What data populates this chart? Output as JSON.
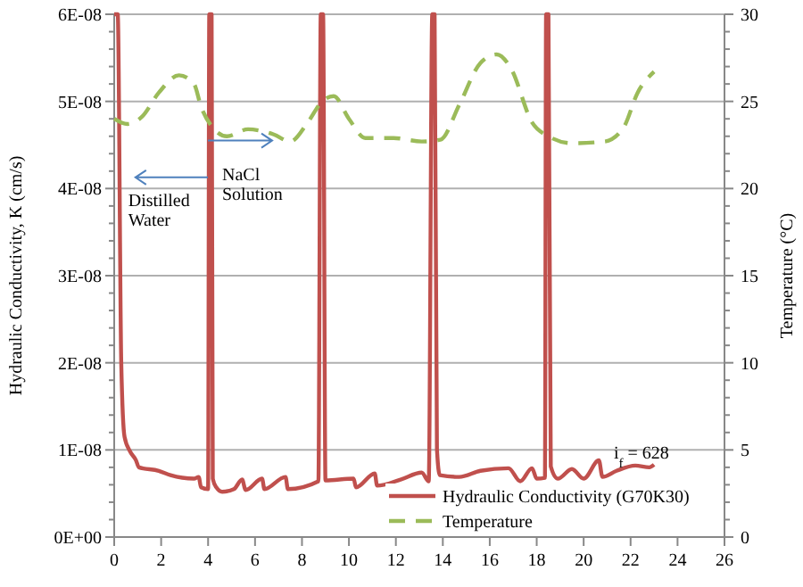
{
  "chart_data": {
    "type": "line",
    "xlabel": null,
    "ylabel": "Hydraulic Conductivity, K (cm/s)",
    "y2label": "Temperature (°C)",
    "xlim": [
      0,
      26
    ],
    "xticks": [
      0,
      2,
      4,
      6,
      8,
      10,
      12,
      14,
      16,
      18,
      20,
      22,
      24,
      26
    ],
    "ylim": [
      0,
      6e-08
    ],
    "yticks": [
      {
        "value": 0,
        "label": "0E+00"
      },
      {
        "value": 2e-09,
        "label": null
      },
      {
        "value": 4e-09,
        "label": null
      },
      {
        "value": 6e-09,
        "label": null
      },
      {
        "value": 8e-09,
        "label": null
      },
      {
        "value": 1e-08,
        "label": "1E-08"
      },
      {
        "value": 1.2e-08,
        "label": null
      },
      {
        "value": 1.4e-08,
        "label": null
      },
      {
        "value": 1.6e-08,
        "label": null
      },
      {
        "value": 1.8e-08,
        "label": null
      },
      {
        "value": 2e-08,
        "label": "2E-08"
      },
      {
        "value": 2.2e-08,
        "label": null
      },
      {
        "value": 2.4e-08,
        "label": null
      },
      {
        "value": 2.6e-08,
        "label": null
      },
      {
        "value": 2.8e-08,
        "label": null
      },
      {
        "value": 3e-08,
        "label": "3E-08"
      },
      {
        "value": 3.2e-08,
        "label": null
      },
      {
        "value": 3.4e-08,
        "label": null
      },
      {
        "value": 3.6e-08,
        "label": null
      },
      {
        "value": 3.8e-08,
        "label": null
      },
      {
        "value": 4e-08,
        "label": "4E-08"
      },
      {
        "value": 4.2e-08,
        "label": null
      },
      {
        "value": 4.4e-08,
        "label": null
      },
      {
        "value": 4.6e-08,
        "label": null
      },
      {
        "value": 4.8e-08,
        "label": null
      },
      {
        "value": 5e-08,
        "label": "5E-08"
      },
      {
        "value": 5.2e-08,
        "label": null
      },
      {
        "value": 5.4e-08,
        "label": null
      },
      {
        "value": 5.6e-08,
        "label": null
      },
      {
        "value": 5.8e-08,
        "label": null
      },
      {
        "value": 6e-08,
        "label": "6E-08"
      }
    ],
    "y2lim": [
      0,
      30
    ],
    "y2ticks": [
      0,
      {
        "value": 1,
        "label": null
      },
      {
        "value": 2,
        "label": null
      },
      {
        "value": 3,
        "label": null
      },
      {
        "value": 4,
        "label": null
      },
      5,
      {
        "value": 6,
        "label": null
      },
      {
        "value": 7,
        "label": null
      },
      {
        "value": 8,
        "label": null
      },
      {
        "value": 9,
        "label": null
      },
      10,
      {
        "value": 11,
        "label": null
      },
      {
        "value": 12,
        "label": null
      },
      {
        "value": 13,
        "label": null
      },
      {
        "value": 14,
        "label": null
      },
      15,
      {
        "value": 16,
        "label": null
      },
      {
        "value": 17,
        "label": null
      },
      {
        "value": 18,
        "label": null
      },
      {
        "value": 19,
        "label": null
      },
      20,
      {
        "value": 21,
        "label": null
      },
      {
        "value": 22,
        "label": null
      },
      {
        "value": 23,
        "label": null
      },
      {
        "value": 24,
        "label": null
      },
      25,
      {
        "value": 26,
        "label": null
      },
      {
        "value": 27,
        "label": null
      },
      {
        "value": 28,
        "label": null
      },
      {
        "value": 29,
        "label": null
      },
      30
    ],
    "grid": "y",
    "legend": "bottom right",
    "annotations": [
      {
        "text": "Distilled Water",
        "x": 0.6,
        "y": 3.8e-08
      },
      {
        "text": "NaCl Solution",
        "x": 4.6,
        "y": 4.1e-08
      },
      "i$_{f}$ = 628"
    ],
    "series": [
      {
        "name": "Hydraulic Conductivity (G70K30)",
        "color": "#c0504d",
        "line_style": "solid",
        "x": [
          0,
          0.15,
          0.3,
          0.44,
          0.68,
          0.93,
          1.05,
          1.9,
          2.4,
          3.4,
          3.6,
          3.7,
          4.0,
          4.05,
          4.15,
          4.2,
          4.35,
          4.6,
          5.1,
          5.45,
          5.6,
          6.3,
          6.4,
          7.3,
          7.4,
          8.7,
          8.8,
          8.9,
          9.0,
          10.2,
          10.3,
          11.1,
          11.2,
          12.2,
          13.1,
          13.4,
          13.55,
          13.65,
          13.75,
          13.87,
          14.7,
          15.6,
          16.8,
          17.3,
          17.8,
          18.0,
          18.35,
          18.4,
          18.5,
          18.6,
          18.9,
          19.5,
          20.0,
          20.65,
          20.8,
          21.4,
          22.2,
          22.8,
          23.0
        ],
        "values": [
          6e-08,
          6e-08,
          2e-08,
          1.15e-08,
          9.8e-09,
          8.8e-09,
          8e-09,
          7.6e-09,
          7.1e-09,
          6.7e-09,
          6.9e-09,
          5.7e-09,
          5.5e-09,
          6e-08,
          6e-08,
          6.7e-09,
          5.7e-09,
          5.2e-09,
          5.5e-09,
          6.6e-09,
          5.4e-09,
          6.7e-09,
          5.5e-09,
          6.9e-09,
          5.5e-09,
          6.4e-09,
          6e-08,
          6e-08,
          6.5e-09,
          6.7e-09,
          5.7e-09,
          7.3e-09,
          5.9e-09,
          6.6e-09,
          7.4e-09,
          6.4e-09,
          6e-08,
          6e-08,
          1.01e-08,
          7.1e-09,
          6.9e-09,
          7.6e-09,
          7.9e-09,
          6.4e-09,
          7.9e-09,
          6.7e-09,
          6.8e-09,
          6e-08,
          6e-08,
          8.1e-09,
          6.7e-09,
          7.8e-09,
          6.7e-09,
          8.8e-09,
          6.9e-09,
          7.6e-09,
          8.2e-09,
          8e-09,
          8.3e-09
        ]
      },
      {
        "name": "Temperature",
        "color": "#9bbb59",
        "line_style": "dashed",
        "axis": "y2",
        "x": [
          0,
          0.56,
          1.17,
          1.9,
          2.76,
          3.4,
          3.7,
          4.2,
          4.8,
          5.7,
          6.8,
          7.5,
          8.25,
          8.86,
          9.35,
          10.0,
          10.7,
          11.9,
          13.1,
          13.9,
          14.7,
          15.6,
          16.3,
          16.9,
          17.8,
          18.5,
          19.5,
          20.9,
          21.7,
          22.3,
          23.0
        ],
        "values": [
          24.0,
          23.7,
          24.1,
          25.5,
          26.5,
          26.0,
          24.7,
          23.5,
          23.0,
          23.4,
          23.1,
          22.7,
          23.8,
          25.0,
          25.3,
          24.0,
          22.9,
          22.9,
          22.7,
          22.8,
          24.8,
          27.2,
          27.7,
          26.9,
          23.8,
          23.0,
          22.6,
          22.7,
          23.5,
          25.5,
          26.7
        ]
      }
    ]
  }
}
